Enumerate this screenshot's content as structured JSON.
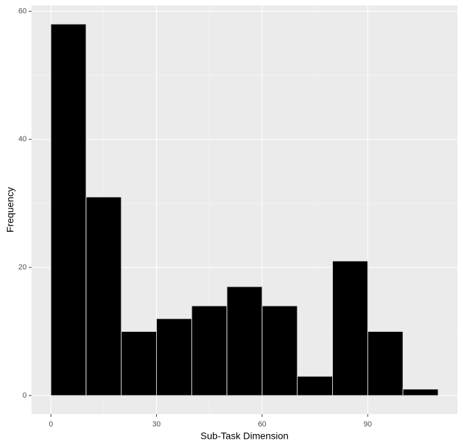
{
  "chart_data": {
    "type": "histogram",
    "x_label": "Sub-Task Dimension",
    "y_label": "Frequency",
    "bins": [
      0,
      10,
      20,
      30,
      40,
      50,
      60,
      70,
      80,
      90,
      100,
      110
    ],
    "values": [
      58,
      31,
      10,
      12,
      14,
      17,
      14,
      3,
      21,
      10,
      1
    ],
    "color": "#000000",
    "edge_color": "#d9d9d9",
    "xlim": [
      -5.5,
      115.5
    ],
    "ylim": [
      -2.9,
      60.9
    ],
    "xticks": [
      0,
      30,
      60,
      90
    ],
    "yticks": [
      0,
      20,
      40,
      60
    ],
    "grid": true
  }
}
